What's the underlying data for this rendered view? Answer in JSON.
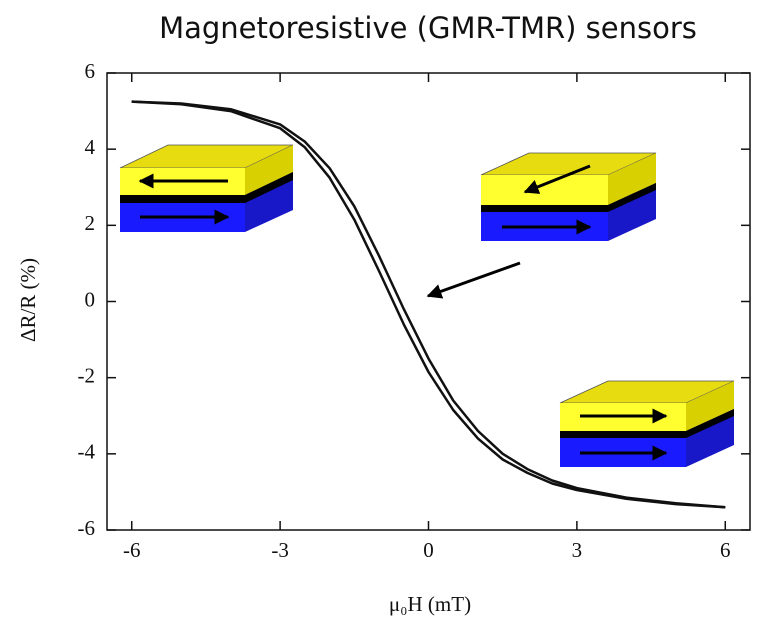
{
  "chart_data": {
    "type": "line",
    "title": "Magnetoresistive (GMR-TMR) sensors",
    "x_label": "μ₀H (mT)",
    "y_label": "ΔR/R (%)",
    "x": [
      -6,
      -5,
      -4,
      -3,
      -2.5,
      -2,
      -1.5,
      -1,
      -0.5,
      0,
      0.5,
      1,
      1.5,
      2,
      2.5,
      3,
      4,
      5,
      6
    ],
    "series": [
      {
        "color": "#111111",
        "values": [
          5.25,
          5.2,
          5.05,
          4.65,
          4.2,
          3.5,
          2.5,
          1.2,
          -0.2,
          -1.5,
          -2.6,
          -3.4,
          -4.0,
          -4.4,
          -4.7,
          -4.9,
          -5.15,
          -5.3,
          -5.4
        ]
      },
      {
        "color": "#111111",
        "values": [
          5.25,
          5.18,
          5.0,
          4.55,
          4.05,
          3.25,
          2.15,
          0.8,
          -0.6,
          -1.85,
          -2.85,
          -3.6,
          -4.15,
          -4.5,
          -4.78,
          -4.95,
          -5.18,
          -5.32,
          -5.4
        ]
      }
    ],
    "xlim": [
      -6.5,
      6.5
    ],
    "xticks": [
      -6,
      -3,
      0,
      3,
      6
    ],
    "ylim": [
      -6,
      6
    ],
    "yticks": [
      -6,
      -4,
      -2,
      0,
      2,
      4,
      6
    ],
    "grid": false
  }
}
